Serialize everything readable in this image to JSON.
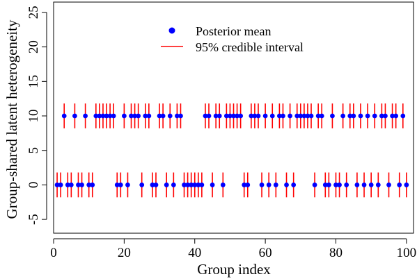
{
  "chart_data": {
    "type": "scatter",
    "xlabel": "Group index",
    "ylabel": "Group-shared latent heterogeneity",
    "xlim": [
      0,
      102
    ],
    "ylim": [
      -7,
      26.5
    ],
    "xticks": [
      0,
      20,
      40,
      60,
      80,
      100
    ],
    "yticks": [
      -5,
      0,
      5,
      10,
      15,
      20,
      25
    ],
    "xtick_labels": [
      "0",
      "20",
      "40",
      "60",
      "80",
      "100"
    ],
    "ytick_labels": [
      "-5",
      "0",
      "5",
      "10",
      "15",
      "20",
      "25"
    ],
    "legend_position": "top-center",
    "grid": false,
    "colors": {
      "mean": "#0000ff",
      "interval": "#ff0000"
    },
    "series": [
      {
        "name": "Posterior mean",
        "kind": "point"
      },
      {
        "name": "95% credible interval",
        "kind": "interval"
      }
    ],
    "points": [
      {
        "x": 1,
        "y": 0,
        "lo": -1.8,
        "hi": 1.8
      },
      {
        "x": 2,
        "y": 0,
        "lo": -1.8,
        "hi": 1.8
      },
      {
        "x": 3,
        "y": 10,
        "lo": 8.2,
        "hi": 11.8
      },
      {
        "x": 4,
        "y": 0,
        "lo": -1.8,
        "hi": 1.8
      },
      {
        "x": 5,
        "y": 0,
        "lo": -1.8,
        "hi": 1.8
      },
      {
        "x": 6,
        "y": 10,
        "lo": 8.2,
        "hi": 11.8
      },
      {
        "x": 7,
        "y": 0,
        "lo": -1.8,
        "hi": 1.8
      },
      {
        "x": 8,
        "y": 0,
        "lo": -1.8,
        "hi": 1.8
      },
      {
        "x": 9,
        "y": 10,
        "lo": 8.2,
        "hi": 11.8
      },
      {
        "x": 10,
        "y": 0,
        "lo": -1.8,
        "hi": 1.8
      },
      {
        "x": 11,
        "y": 0,
        "lo": -1.8,
        "hi": 1.8
      },
      {
        "x": 12,
        "y": 10,
        "lo": 8.2,
        "hi": 11.8
      },
      {
        "x": 13,
        "y": 10,
        "lo": 8.2,
        "hi": 11.8
      },
      {
        "x": 14,
        "y": 10,
        "lo": 8.2,
        "hi": 11.8
      },
      {
        "x": 15,
        "y": 10,
        "lo": 8.2,
        "hi": 11.8
      },
      {
        "x": 16,
        "y": 10,
        "lo": 8.2,
        "hi": 11.8
      },
      {
        "x": 17,
        "y": 10,
        "lo": 8.2,
        "hi": 11.8
      },
      {
        "x": 18,
        "y": 0,
        "lo": -1.8,
        "hi": 1.8
      },
      {
        "x": 19,
        "y": 0,
        "lo": -1.8,
        "hi": 1.8
      },
      {
        "x": 20,
        "y": 10,
        "lo": 8.2,
        "hi": 11.8
      },
      {
        "x": 21,
        "y": 0,
        "lo": -1.8,
        "hi": 1.8
      },
      {
        "x": 22,
        "y": 10,
        "lo": 8.2,
        "hi": 11.8
      },
      {
        "x": 23,
        "y": 10,
        "lo": 8.2,
        "hi": 11.8
      },
      {
        "x": 24,
        "y": 10,
        "lo": 8.2,
        "hi": 11.8
      },
      {
        "x": 25,
        "y": 0,
        "lo": -1.8,
        "hi": 1.8
      },
      {
        "x": 26,
        "y": 10,
        "lo": 8.2,
        "hi": 11.8
      },
      {
        "x": 27,
        "y": 10,
        "lo": 8.2,
        "hi": 11.8
      },
      {
        "x": 28,
        "y": 0,
        "lo": -1.8,
        "hi": 1.8
      },
      {
        "x": 29,
        "y": 0,
        "lo": -1.8,
        "hi": 1.8
      },
      {
        "x": 30,
        "y": 10,
        "lo": 8.2,
        "hi": 11.8
      },
      {
        "x": 31,
        "y": 10,
        "lo": 8.2,
        "hi": 11.8
      },
      {
        "x": 32,
        "y": 0,
        "lo": -1.8,
        "hi": 1.8
      },
      {
        "x": 33,
        "y": 10,
        "lo": 8.2,
        "hi": 11.8
      },
      {
        "x": 34,
        "y": 0,
        "lo": -1.8,
        "hi": 1.8
      },
      {
        "x": 35,
        "y": 10,
        "lo": 8.2,
        "hi": 11.8
      },
      {
        "x": 36,
        "y": 10,
        "lo": 8.2,
        "hi": 11.8
      },
      {
        "x": 37,
        "y": 0,
        "lo": -1.8,
        "hi": 1.8
      },
      {
        "x": 38,
        "y": 0,
        "lo": -1.8,
        "hi": 1.8
      },
      {
        "x": 39,
        "y": 0,
        "lo": -1.8,
        "hi": 1.8
      },
      {
        "x": 40,
        "y": 0,
        "lo": -1.8,
        "hi": 1.8
      },
      {
        "x": 41,
        "y": 0,
        "lo": -1.8,
        "hi": 1.8
      },
      {
        "x": 42,
        "y": 0,
        "lo": -1.8,
        "hi": 1.8
      },
      {
        "x": 43,
        "y": 10,
        "lo": 8.2,
        "hi": 11.8
      },
      {
        "x": 44,
        "y": 10,
        "lo": 8.2,
        "hi": 11.8
      },
      {
        "x": 45,
        "y": 0,
        "lo": -1.8,
        "hi": 1.8
      },
      {
        "x": 46,
        "y": 10,
        "lo": 8.2,
        "hi": 11.8
      },
      {
        "x": 47,
        "y": 10,
        "lo": 8.2,
        "hi": 11.8
      },
      {
        "x": 48,
        "y": 0,
        "lo": -1.8,
        "hi": 1.8
      },
      {
        "x": 49,
        "y": 10,
        "lo": 8.2,
        "hi": 11.8
      },
      {
        "x": 50,
        "y": 10,
        "lo": 8.2,
        "hi": 11.8
      },
      {
        "x": 51,
        "y": 10,
        "lo": 8.2,
        "hi": 11.8
      },
      {
        "x": 52,
        "y": 10,
        "lo": 8.2,
        "hi": 11.8
      },
      {
        "x": 53,
        "y": 10,
        "lo": 8.2,
        "hi": 11.8
      },
      {
        "x": 54,
        "y": 0,
        "lo": -1.8,
        "hi": 1.8
      },
      {
        "x": 55,
        "y": 0,
        "lo": -1.8,
        "hi": 1.8
      },
      {
        "x": 56,
        "y": 10,
        "lo": 8.2,
        "hi": 11.8
      },
      {
        "x": 57,
        "y": 10,
        "lo": 8.2,
        "hi": 11.8
      },
      {
        "x": 58,
        "y": 10,
        "lo": 8.2,
        "hi": 11.8
      },
      {
        "x": 59,
        "y": 0,
        "lo": -1.8,
        "hi": 1.8
      },
      {
        "x": 60,
        "y": 10,
        "lo": 8.2,
        "hi": 11.8
      },
      {
        "x": 61,
        "y": 0,
        "lo": -1.8,
        "hi": 1.8
      },
      {
        "x": 62,
        "y": 10,
        "lo": 8.2,
        "hi": 11.8
      },
      {
        "x": 63,
        "y": 0,
        "lo": -1.8,
        "hi": 1.8
      },
      {
        "x": 64,
        "y": 10,
        "lo": 8.2,
        "hi": 11.8
      },
      {
        "x": 65,
        "y": 10,
        "lo": 8.2,
        "hi": 11.8
      },
      {
        "x": 66,
        "y": 0,
        "lo": -1.8,
        "hi": 1.8
      },
      {
        "x": 67,
        "y": 10,
        "lo": 8.2,
        "hi": 11.8
      },
      {
        "x": 68,
        "y": 0,
        "lo": -1.8,
        "hi": 1.8
      },
      {
        "x": 69,
        "y": 10,
        "lo": 8.2,
        "hi": 11.8
      },
      {
        "x": 70,
        "y": 10,
        "lo": 8.2,
        "hi": 11.8
      },
      {
        "x": 71,
        "y": 10,
        "lo": 8.2,
        "hi": 11.8
      },
      {
        "x": 72,
        "y": 10,
        "lo": 8.2,
        "hi": 11.8
      },
      {
        "x": 73,
        "y": 10,
        "lo": 8.2,
        "hi": 11.8
      },
      {
        "x": 74,
        "y": 0,
        "lo": -1.8,
        "hi": 1.8
      },
      {
        "x": 75,
        "y": 10,
        "lo": 8.2,
        "hi": 11.8
      },
      {
        "x": 76,
        "y": 10,
        "lo": 8.2,
        "hi": 11.8
      },
      {
        "x": 77,
        "y": 0,
        "lo": -1.8,
        "hi": 1.8
      },
      {
        "x": 78,
        "y": 0,
        "lo": -1.8,
        "hi": 1.8
      },
      {
        "x": 79,
        "y": 10,
        "lo": 8.2,
        "hi": 11.8
      },
      {
        "x": 80,
        "y": 0,
        "lo": -1.8,
        "hi": 1.8
      },
      {
        "x": 81,
        "y": 0,
        "lo": -1.8,
        "hi": 1.8
      },
      {
        "x": 82,
        "y": 10,
        "lo": 8.2,
        "hi": 11.8
      },
      {
        "x": 83,
        "y": 0,
        "lo": -1.8,
        "hi": 1.8
      },
      {
        "x": 84,
        "y": 10,
        "lo": 8.2,
        "hi": 11.8
      },
      {
        "x": 85,
        "y": 10,
        "lo": 8.2,
        "hi": 11.8
      },
      {
        "x": 86,
        "y": 0,
        "lo": -1.8,
        "hi": 1.8
      },
      {
        "x": 87,
        "y": 10,
        "lo": 8.2,
        "hi": 11.8
      },
      {
        "x": 88,
        "y": 0,
        "lo": -1.8,
        "hi": 1.8
      },
      {
        "x": 89,
        "y": 10,
        "lo": 8.2,
        "hi": 11.8
      },
      {
        "x": 90,
        "y": 0,
        "lo": -1.8,
        "hi": 1.8
      },
      {
        "x": 91,
        "y": 10,
        "lo": 8.2,
        "hi": 11.8
      },
      {
        "x": 92,
        "y": 0,
        "lo": -1.8,
        "hi": 1.8
      },
      {
        "x": 93,
        "y": 10,
        "lo": 8.2,
        "hi": 11.8
      },
      {
        "x": 94,
        "y": 10,
        "lo": 8.2,
        "hi": 11.8
      },
      {
        "x": 95,
        "y": 0,
        "lo": -1.8,
        "hi": 1.8
      },
      {
        "x": 96,
        "y": 10,
        "lo": 8.2,
        "hi": 11.8
      },
      {
        "x": 97,
        "y": 10,
        "lo": 8.2,
        "hi": 11.8
      },
      {
        "x": 98,
        "y": 0,
        "lo": -1.8,
        "hi": 1.8
      },
      {
        "x": 99,
        "y": 10,
        "lo": 8.2,
        "hi": 11.8
      },
      {
        "x": 100,
        "y": 0,
        "lo": -1.8,
        "hi": 1.8
      }
    ]
  }
}
